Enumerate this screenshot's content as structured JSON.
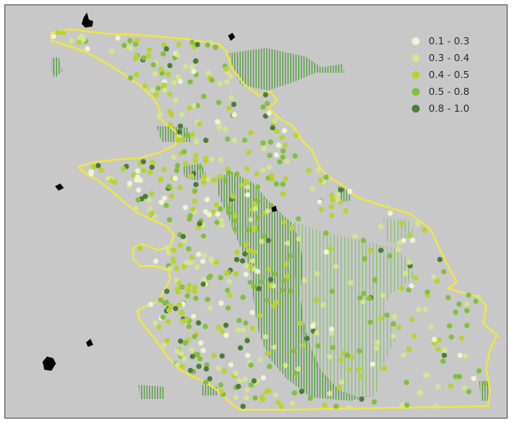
{
  "legend": {
    "items": [
      {
        "label": "0.1 - 0.3",
        "color": "#eef3d4"
      },
      {
        "label": "0.3 - 0.4",
        "color": "#d5e48e"
      },
      {
        "label": "0.4 - 0.5",
        "color": "#b8d330"
      },
      {
        "label": "0.5 - 0.8",
        "color": "#84be3f"
      },
      {
        "label": "0.8 - 1.0",
        "color": "#4d7c39"
      }
    ]
  },
  "colors": {
    "background": "#c8c8c8",
    "frame": "#5a5a5a",
    "boundary": "#f0e83a",
    "hatch": "#5da24a",
    "hatch_light": "#8fc27b",
    "landmass": "#000000"
  }
}
